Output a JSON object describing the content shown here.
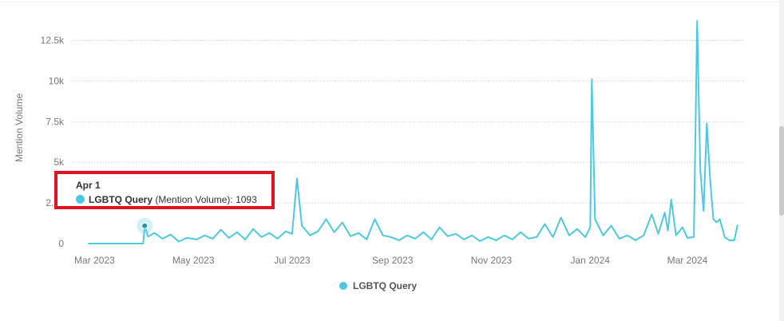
{
  "chart_data": {
    "type": "line",
    "ylabel": "Mention Volume",
    "yticks": [
      "0",
      "2.5k",
      "5k",
      "7.5k",
      "10k",
      "12.5k"
    ],
    "ylim": [
      0,
      14000
    ],
    "xticks": [
      "Mar 2023",
      "May 2023",
      "Jul 2023",
      "Sep 2023",
      "Nov 2023",
      "Jan 2024",
      "Mar 2024"
    ],
    "xlim": [
      "2023-02-15",
      "2024-04-05"
    ],
    "grid": true,
    "legend_position": "bottom",
    "series": [
      {
        "name": "LGBTQ Query",
        "color": "#4cc9e0",
        "points": [
          [
            "2023-02-25",
            0
          ],
          [
            "2023-03-31",
            0
          ],
          [
            "2023-04-01",
            1093
          ],
          [
            "2023-04-03",
            420
          ],
          [
            "2023-04-07",
            650
          ],
          [
            "2023-04-12",
            300
          ],
          [
            "2023-04-17",
            550
          ],
          [
            "2023-04-22",
            120
          ],
          [
            "2023-04-27",
            350
          ],
          [
            "2023-05-03",
            250
          ],
          [
            "2023-05-08",
            500
          ],
          [
            "2023-05-13",
            300
          ],
          [
            "2023-05-18",
            850
          ],
          [
            "2023-05-23",
            350
          ],
          [
            "2023-05-28",
            700
          ],
          [
            "2023-06-02",
            250
          ],
          [
            "2023-06-07",
            900
          ],
          [
            "2023-06-12",
            400
          ],
          [
            "2023-06-17",
            650
          ],
          [
            "2023-06-22",
            300
          ],
          [
            "2023-06-27",
            750
          ],
          [
            "2023-07-01",
            600
          ],
          [
            "2023-07-04",
            4000
          ],
          [
            "2023-07-07",
            1100
          ],
          [
            "2023-07-12",
            500
          ],
          [
            "2023-07-17",
            750
          ],
          [
            "2023-07-22",
            1500
          ],
          [
            "2023-07-27",
            700
          ],
          [
            "2023-08-01",
            1300
          ],
          [
            "2023-08-06",
            450
          ],
          [
            "2023-08-11",
            650
          ],
          [
            "2023-08-16",
            250
          ],
          [
            "2023-08-21",
            1500
          ],
          [
            "2023-08-26",
            500
          ],
          [
            "2023-08-31",
            400
          ],
          [
            "2023-09-05",
            200
          ],
          [
            "2023-09-10",
            500
          ],
          [
            "2023-09-15",
            300
          ],
          [
            "2023-09-20",
            700
          ],
          [
            "2023-09-25",
            250
          ],
          [
            "2023-09-30",
            1000
          ],
          [
            "2023-10-05",
            450
          ],
          [
            "2023-10-10",
            600
          ],
          [
            "2023-10-15",
            250
          ],
          [
            "2023-10-20",
            500
          ],
          [
            "2023-10-25",
            150
          ],
          [
            "2023-10-30",
            400
          ],
          [
            "2023-11-04",
            200
          ],
          [
            "2023-11-09",
            500
          ],
          [
            "2023-11-14",
            250
          ],
          [
            "2023-11-19",
            700
          ],
          [
            "2023-11-24",
            300
          ],
          [
            "2023-11-29",
            400
          ],
          [
            "2023-12-04",
            1200
          ],
          [
            "2023-12-09",
            400
          ],
          [
            "2023-12-14",
            1600
          ],
          [
            "2023-12-19",
            500
          ],
          [
            "2023-12-24",
            900
          ],
          [
            "2023-12-29",
            400
          ],
          [
            "2024-01-01",
            1000
          ],
          [
            "2024-01-02",
            10100
          ],
          [
            "2024-01-04",
            1500
          ],
          [
            "2024-01-09",
            500
          ],
          [
            "2024-01-14",
            1100
          ],
          [
            "2024-01-19",
            300
          ],
          [
            "2024-01-24",
            500
          ],
          [
            "2024-01-29",
            200
          ],
          [
            "2024-02-03",
            500
          ],
          [
            "2024-02-08",
            1800
          ],
          [
            "2024-02-12",
            600
          ],
          [
            "2024-02-16",
            1900
          ],
          [
            "2024-02-18",
            800
          ],
          [
            "2024-02-20",
            2700
          ],
          [
            "2024-02-23",
            500
          ],
          [
            "2024-02-27",
            1000
          ],
          [
            "2024-03-01",
            350
          ],
          [
            "2024-03-05",
            400
          ],
          [
            "2024-03-07",
            13700
          ],
          [
            "2024-03-09",
            4500
          ],
          [
            "2024-03-11",
            2000
          ],
          [
            "2024-03-13",
            7400
          ],
          [
            "2024-03-15",
            4000
          ],
          [
            "2024-03-17",
            1500
          ],
          [
            "2024-03-19",
            1300
          ],
          [
            "2024-03-21",
            1500
          ],
          [
            "2024-03-24",
            400
          ],
          [
            "2024-03-27",
            200
          ],
          [
            "2024-03-30",
            200
          ],
          [
            "2024-04-01",
            1150
          ]
        ]
      }
    ],
    "highlight": {
      "date": "2023-04-01",
      "value": 1093
    }
  },
  "tooltip": {
    "title": "Apr 1",
    "series": "LGBTQ Query",
    "metric": "(Mention Volume): ",
    "value": "1093"
  },
  "legend": {
    "label": "LGBTQ Query"
  },
  "colors": {
    "series": "#4cc9e0",
    "highlight_box": "#e0141e"
  }
}
